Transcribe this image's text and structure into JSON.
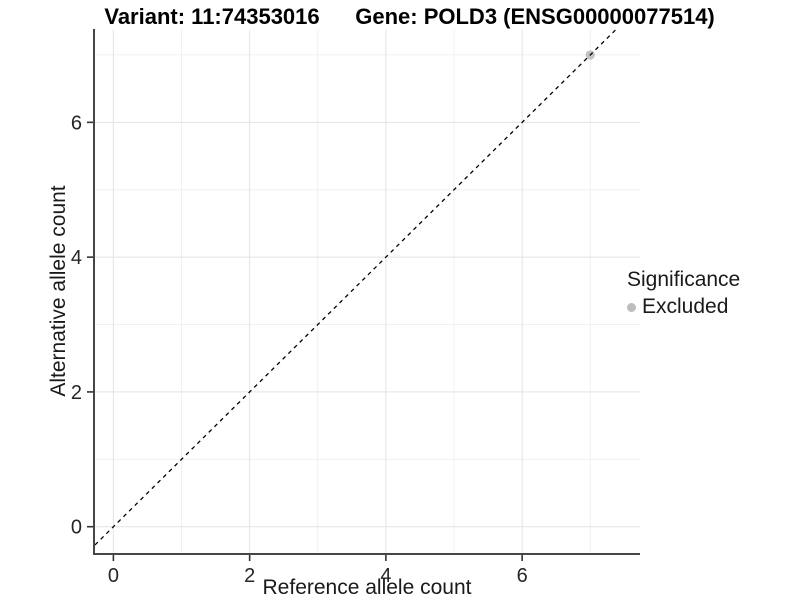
{
  "titles": {
    "left": "Variant: 11:74353016",
    "right": "Gene: POLD3 (ENSG00000077514)"
  },
  "chart_data": {
    "type": "scatter",
    "title_left": "Variant: 11:74353016",
    "title_right": "Gene: POLD3 (ENSG00000077514)",
    "xlabel": "Reference allele count",
    "ylabel": "Alternative allele count",
    "xlim": [
      -0.27,
      7.73
    ],
    "ylim": [
      -0.39,
      7.37
    ],
    "x_ticks": [
      0,
      2,
      4,
      6
    ],
    "y_ticks": [
      0,
      2,
      4,
      6
    ],
    "x_minor_ticks": [
      1,
      3,
      5,
      7
    ],
    "y_minor_ticks": [
      1,
      3,
      5,
      7
    ],
    "grid": "major and minor on, white panel",
    "reference_line": {
      "type": "identity y=x",
      "style": "dashed",
      "color": "#000000"
    },
    "points": [
      {
        "x": 7,
        "y": 7,
        "significance": "Excluded",
        "color": "#c2c2c2"
      }
    ],
    "legend": {
      "title": "Significance",
      "position": "right",
      "items": [
        {
          "label": "Excluded",
          "color": "#bdbdbd",
          "marker": "circle"
        }
      ]
    }
  },
  "colors": {
    "major_grid": "#e3e3e3",
    "minor_grid": "#f0f0f0",
    "axis_line": "#464646",
    "tick_mark": "#333333",
    "tick_label": "#262626",
    "point": "#c2c2c2",
    "legend_dot": "#bdbdbd",
    "reference_line": "#000000"
  }
}
